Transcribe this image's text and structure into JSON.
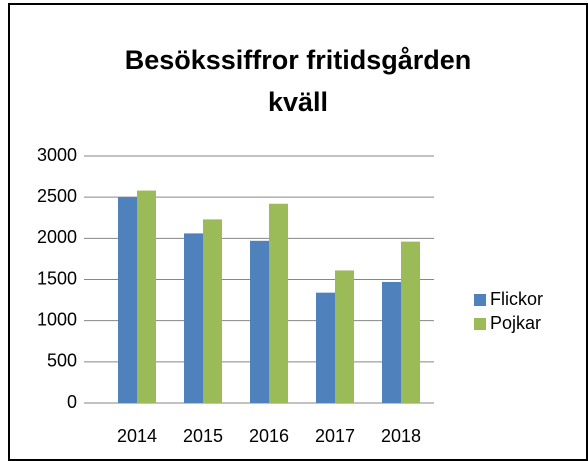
{
  "chart_data": {
    "type": "bar",
    "title": "Besökssiffror fritidsgården kväll",
    "categories": [
      "2014",
      "2015",
      "2016",
      "2017",
      "2018"
    ],
    "series": [
      {
        "name": "Flickor",
        "color": "#4f81bd",
        "values": [
          2500,
          2060,
          1970,
          1340,
          1470
        ]
      },
      {
        "name": "Pojkar",
        "color": "#9bbb59",
        "values": [
          2580,
          2230,
          2420,
          1610,
          1960
        ]
      }
    ],
    "ylim": [
      0,
      3000
    ],
    "yticks": [
      0,
      500,
      1000,
      1500,
      2000,
      2500,
      3000
    ],
    "grid": true,
    "legend": "right"
  }
}
